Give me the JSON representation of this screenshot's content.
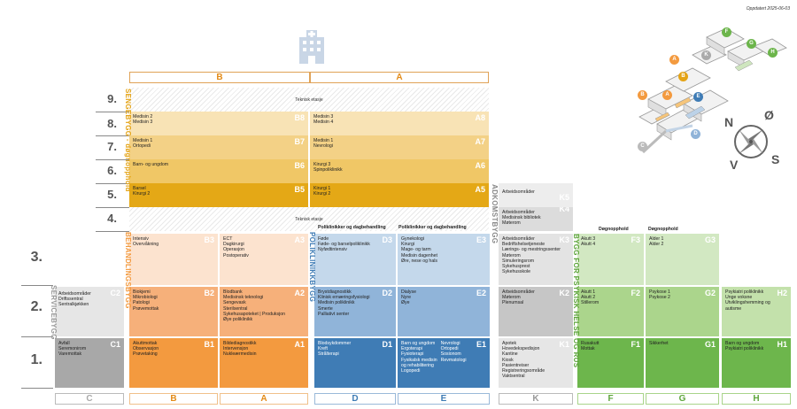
{
  "updated": "Oppdatert 2025-06-03",
  "zones_top": [
    "B",
    "A"
  ],
  "zones_bottom": [
    "C",
    "B",
    "A",
    "D",
    "E",
    "K",
    "F",
    "G",
    "H"
  ],
  "floors": [
    "9.",
    "8.",
    "7.",
    "6.",
    "5.",
    "4.",
    "3.",
    "2.",
    "1."
  ],
  "teknisk_etasje": "Teknisk etasje",
  "building_labels": {
    "sengebygg": "SENGEBYGG - døgnopphold",
    "behandlingsbygg": "BEHANDLINGSBYGG",
    "servicebygg": "SERVICEBYGG",
    "poliklinikkbygg": "POLIKLINIKKBYGG",
    "adkomstbygg": "ADKOMSTBYGG",
    "psykisk": "BYGG FOR PSYKISK HELSE OG RUS"
  },
  "section_heads": {
    "d3": "Poliklinikker og dagbehandling",
    "e3": "Poliklinikker og dagbehandling",
    "f": "Døgnopphold",
    "g": "Døgnopphold"
  },
  "cells": {
    "B8": {
      "code": "B8",
      "lines": "Medisin 2\nMedisin 3"
    },
    "A8": {
      "code": "A8",
      "lines": "Medisin 3\nMedisin 4"
    },
    "B7": {
      "code": "B7",
      "lines": "Medisin 1\nOrtopedi"
    },
    "A7": {
      "code": "A7",
      "lines": "Medisin 1\nNevrologi"
    },
    "B6": {
      "code": "B6",
      "lines": "Barn- og ungdom"
    },
    "A6": {
      "code": "A6",
      "lines": "Kirurgi 3\nSpinpoliklinikk"
    },
    "B5": {
      "code": "B5",
      "lines": "Barsel\nKirurgi 2"
    },
    "A5": {
      "code": "A5",
      "lines": "Kirurgi 1\nKirurgi 2"
    },
    "K5": {
      "code": "K5",
      "lines": "Arbeidsområder"
    },
    "K4": {
      "code": "K4",
      "lines": "Arbeidsområder\nMedisinsk bibliotek\nMøterom"
    },
    "B3": {
      "code": "B3",
      "lines": "Intensiv\nOvervåkning"
    },
    "A3": {
      "code": "A3",
      "lines": "ECT\nDagkirurgi\nOperasjon\nPostoperativ"
    },
    "D3": {
      "code": "D3",
      "lines": "Føde\nFøde- og barselpoliklinikk\nNyfødtintensiv"
    },
    "E3": {
      "code": "E3",
      "lines": "Gynekologi\nKirurgi\nMage- og tarm\nMedisin dagenhet\nØre, nese og hals"
    },
    "K3": {
      "code": "K3",
      "lines": "Arbeidsområder\nBedriftshelsetjeneste\nLærings- og mestringssenter\nMøterom\nSimuleringsrom\nSykehusprest\nSykehusskole"
    },
    "F3": {
      "code": "F3",
      "lines": "Akutt 3\nAkutt 4"
    },
    "G3": {
      "code": "G3",
      "lines": "Alder 1\nAlder 2"
    },
    "C2": {
      "code": "C2",
      "lines": "Arbeidsområder\nDriftssentral\nSentralkjøkken"
    },
    "B2": {
      "code": "B2",
      "lines": "Biokjemi\nMikrobiologi\nPatologi\nPrøvemottak"
    },
    "A2": {
      "code": "A2",
      "lines": "Blodbank\nMedisinsk teknologi\nSengevask\nSterilsentral\nSykehusapoteket | Produksjon\nØye poliklinikk"
    },
    "D2": {
      "code": "D2",
      "lines": "Brystdiagnostikk\nKlinisk ernæringsfysiologi\nMedisin poliklinikk\nSmerte\nPalliativt senter"
    },
    "E2": {
      "code": "E2",
      "lines": "Dialyse\nNyre\nØye"
    },
    "K2": {
      "code": "K2",
      "lines": "Arbeidsområder\nMøterom\nPlenumsal"
    },
    "F2": {
      "code": "F2",
      "lines": "Akutt 1\nAkutt 2\nStillerom"
    },
    "G2": {
      "code": "G2",
      "lines": "Psykose 1\nPsykose 2"
    },
    "H2": {
      "code": "H2",
      "lines": "Psykiatri poliklinikk\nUnge voksne\nUtviklingshemming og\nautisme"
    },
    "C1": {
      "code": "C1",
      "lines": "Avfall\nSeremonirom\nVaremottak"
    },
    "B1": {
      "code": "B1",
      "lines": "Akuttmottak\nObservasjon\nPrøvetaking"
    },
    "A1": {
      "code": "A1",
      "lines": "Bildediagnostikk\nIntervensjon\nNukleærmedisin"
    },
    "D1": {
      "code": "D1",
      "lines": "Blodsykdommer\nKreft\nStrålterapi"
    },
    "E1": {
      "code": "E1",
      "lines": "Barn og ungdom\nErgoterapi\nFysioterapi\nFysikalsk medisin\nog rehabilitering\nLogopedi",
      "lines2": "Nevrologi\nOrtopedi\nSosionom\nRevmatologi"
    },
    "K1": {
      "code": "K1",
      "lines": "Apotek\nHovedekspedisjon\nKantine\nKiosk\nPasientreiser\nRegistreringsområde\nVaktsentral"
    },
    "F1": {
      "code": "F1",
      "lines": "Rusakutt\nMottak"
    },
    "G1": {
      "code": "G1",
      "lines": "Sikkerhet"
    },
    "H1": {
      "code": "H1",
      "lines": "Barn og ungdom\nPsykiatri poliklinikk"
    }
  },
  "compass": {
    "n": "N",
    "o": "Ø",
    "s": "S",
    "v": "V"
  },
  "map_badges": [
    "A",
    "B",
    "C",
    "D",
    "E",
    "F",
    "G",
    "H",
    "K"
  ],
  "colors": {
    "orange_dark": "#e4a315",
    "orange_light": "#f7e4b4",
    "peach": "#fbe1cc",
    "orange_mid": "#f4ac73",
    "orange_strong": "#f39a3f",
    "grey": "#a7a7a7",
    "grey_light": "#e6e6e6",
    "blue_light": "#c2d7ea",
    "blue_mid": "#8fb3d8",
    "blue_dark": "#3f7bb4",
    "green_light": "#cfe6bf",
    "green_mid": "#a9d48a",
    "green_dark": "#6cb54b"
  }
}
